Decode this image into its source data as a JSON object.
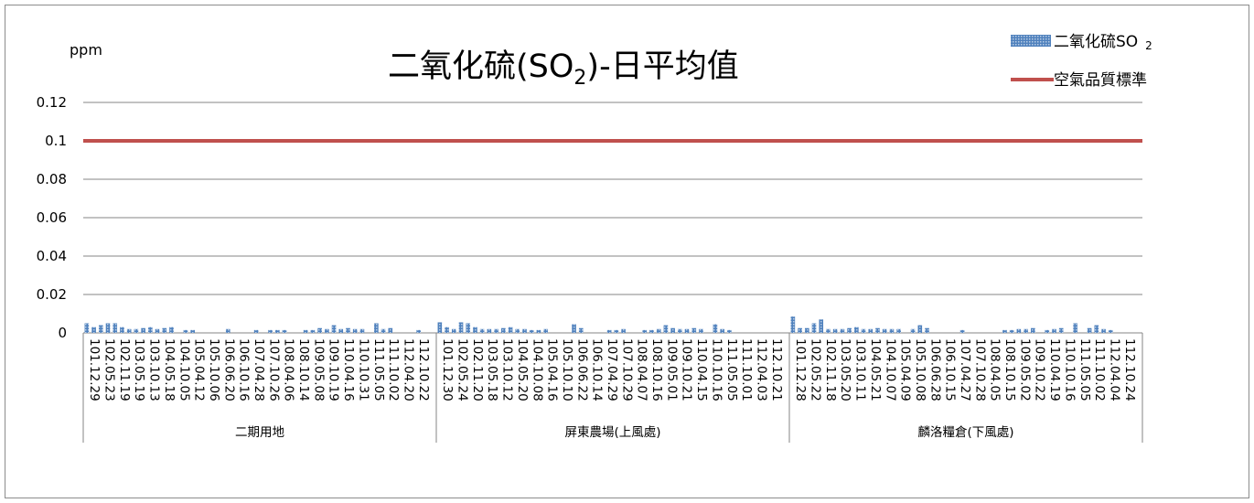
{
  "chart_data": {
    "type": "bar",
    "title": "二氧化硫(SO₂)-日平均值",
    "title_parts": [
      "二氧化硫(SO",
      "2",
      ")-日平均值"
    ],
    "ylabel": "ppm",
    "ylim": [
      0,
      0.12
    ],
    "yticks": [
      "0",
      "0.02",
      "0.04",
      "0.06",
      "0.08",
      "0.1",
      "0.12"
    ],
    "grid": true,
    "legend_position": "top-right",
    "legend": [
      {
        "label": "二氧化硫SO",
        "sub": "2",
        "kind": "bar"
      },
      {
        "label": "空氣品質標準",
        "kind": "line"
      }
    ],
    "colors": {
      "bar": "#4f81bd",
      "bar_light": "#b9cde5",
      "line": "#c0504d",
      "grid": "#868686"
    },
    "standard": 0.1,
    "groups": [
      {
        "name": "二期用地",
        "ticks": [
          "101.12.29",
          "102.05.23",
          "102.11.19",
          "103.05.19",
          "103.10.13",
          "104.05.18",
          "104.10.05",
          "105.04.12",
          "105.10.06",
          "106.06.20",
          "106.10.16",
          "107.04.28",
          "107.10.26",
          "108.04.06",
          "108.10.14",
          "109.05.08",
          "109.10.19",
          "110.04.16",
          "110.10.31",
          "111.05.05",
          "111.10.02",
          "112.04.20",
          "112.10.22"
        ],
        "values": [
          0.005,
          0.003,
          0.004,
          0.005,
          0.005,
          0.003,
          0.002,
          0.002,
          0.0025,
          0.003,
          0.002,
          0.0025,
          0.003,
          0,
          0.0015,
          0.0015,
          0,
          0,
          0,
          0,
          0.002,
          0,
          0,
          0,
          0.0015,
          0,
          0.0015,
          0.0015,
          0.0015,
          0,
          0,
          0.0015,
          0.0015,
          0.0025,
          0.002,
          0.004,
          0.002,
          0.0025,
          0.002,
          0.002,
          0,
          0.005,
          0.002,
          0.0025,
          0,
          0,
          0,
          0.0015,
          0,
          0
        ]
      },
      {
        "name": "屏東農場(上風處)",
        "ticks": [
          "101.12.30",
          "102.05.24",
          "102.11.20",
          "103.05.18",
          "103.10.12",
          "104.05.20",
          "104.10.08",
          "105.04.16",
          "105.10.10",
          "106.06.22",
          "106.10.14",
          "107.04.29",
          "107.10.29",
          "108.04.07",
          "108.10.16",
          "109.05.01",
          "109.10.21",
          "110.04.15",
          "110.10.16",
          "111.05.05",
          "111.10.01",
          "112.04.03",
          "112.10.21"
        ],
        "values": [
          0.0055,
          0.003,
          0.002,
          0.0055,
          0.005,
          0.003,
          0.002,
          0.002,
          0.002,
          0.0025,
          0.003,
          0.002,
          0.002,
          0.0015,
          0.0015,
          0.002,
          0,
          0,
          0,
          0.0045,
          0.0025,
          0,
          0,
          0,
          0.0015,
          0.0015,
          0.002,
          0,
          0,
          0.0015,
          0.0015,
          0.002,
          0.004,
          0.0025,
          0.002,
          0.002,
          0.0025,
          0.002,
          0,
          0.0045,
          0.002,
          0.0015,
          0,
          0,
          0,
          0,
          0,
          0,
          0,
          0
        ]
      },
      {
        "name": "麟洛糧倉(下風處)",
        "ticks": [
          "101.12.28",
          "102.05.22",
          "102.11.18",
          "103.05.20",
          "103.10.11",
          "104.05.21",
          "104.10.07",
          "105.04.09",
          "105.10.08",
          "106.06.28",
          "106.10.15",
          "107.04.27",
          "107.10.28",
          "108.04.05",
          "108.10.15",
          "109.05.02",
          "109.10.22",
          "110.04.19",
          "110.10.16",
          "111.05.05",
          "111.10.02",
          "112.04.04",
          "112.10.24"
        ],
        "values": [
          0.0085,
          0.0025,
          0.0025,
          0.005,
          0.007,
          0.002,
          0.002,
          0.002,
          0.0025,
          0.003,
          0.002,
          0.002,
          0.0025,
          0.002,
          0.002,
          0.002,
          0,
          0.002,
          0.004,
          0.0025,
          0,
          0,
          0,
          0,
          0.0015,
          0,
          0,
          0,
          0,
          0,
          0.0015,
          0.0015,
          0.002,
          0.002,
          0.0025,
          0,
          0.0015,
          0.002,
          0.0025,
          0,
          0.005,
          0,
          0.0025,
          0.004,
          0.002,
          0.0015,
          0,
          0,
          0,
          0
        ]
      }
    ]
  }
}
